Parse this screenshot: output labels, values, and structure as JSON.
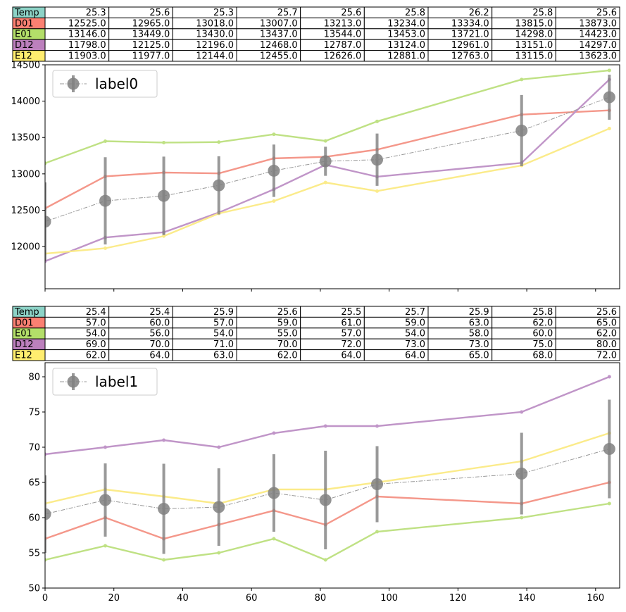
{
  "chart_data": [
    {
      "type": "line",
      "x": [
        0,
        17.5,
        34.5,
        50.5,
        66.5,
        81.5,
        96.5,
        138.5,
        164
      ],
      "xlim": [
        0,
        167
      ],
      "ylim": [
        11420,
        14500
      ],
      "yticks": [
        12000,
        12500,
        13000,
        13500,
        14000,
        14500
      ],
      "show_x_tick_labels": false,
      "table": {
        "row_labels": [
          "Temp",
          "D01",
          "E01",
          "D12",
          "E12"
        ],
        "rows": [
          [
            "25.3",
            "25.6",
            "25.3",
            "25.7",
            "25.6",
            "25.8",
            "26.2",
            "25.8",
            "25.6"
          ],
          [
            "12525.0",
            "12965.0",
            "13018.0",
            "13007.0",
            "13213.0",
            "13234.0",
            "13334.0",
            "13815.0",
            "13873.0"
          ],
          [
            "13146.0",
            "13449.0",
            "13430.0",
            "13437.0",
            "13544.0",
            "13453.0",
            "13721.0",
            "14298.0",
            "14423.0"
          ],
          [
            "11798.0",
            "12125.0",
            "12196.0",
            "12468.0",
            "12787.0",
            "13124.0",
            "12961.0",
            "13151.0",
            "14297.0"
          ],
          [
            "11903.0",
            "11977.0",
            "12144.0",
            "12455.0",
            "12626.0",
            "12881.0",
            "12763.0",
            "13115.0",
            "13623.0"
          ]
        ]
      },
      "series": [
        {
          "name": "D01",
          "color": "#f4978a",
          "values": [
            12525,
            12965,
            13018,
            13007,
            13213,
            13234,
            13334,
            13815,
            13873
          ]
        },
        {
          "name": "E01",
          "color": "#bfe184",
          "values": [
            13146,
            13449,
            13430,
            13437,
            13544,
            13453,
            13721,
            14298,
            14423
          ]
        },
        {
          "name": "D12",
          "color": "#c095c8",
          "values": [
            11798,
            12125,
            12196,
            12468,
            12787,
            13124,
            12961,
            13151,
            14297
          ]
        },
        {
          "name": "E12",
          "color": "#fbeb8a",
          "values": [
            11903,
            11977,
            12144,
            12455,
            12626,
            12881,
            12763,
            13115,
            13623
          ]
        }
      ],
      "mean_series": {
        "name": "label0",
        "color": "#808080",
        "values": [
          12343,
          12629,
          12697,
          12842,
          13043,
          13173,
          13195,
          13595,
          14054
        ],
        "errors": [
          540,
          600,
          540,
          400,
          360,
          200,
          360,
          490,
          310
        ]
      },
      "legend": "upper-left"
    },
    {
      "type": "line",
      "x": [
        0,
        17.5,
        34.5,
        50.5,
        66.5,
        81.5,
        96.5,
        138.5,
        164
      ],
      "xlim": [
        0,
        167
      ],
      "ylim": [
        50,
        82
      ],
      "yticks": [
        50,
        55,
        60,
        65,
        70,
        75,
        80
      ],
      "xticks": [
        0,
        20,
        40,
        60,
        80,
        100,
        120,
        140,
        160
      ],
      "show_x_tick_labels": true,
      "table": {
        "row_labels": [
          "Temp",
          "D01",
          "E01",
          "D12",
          "E12"
        ],
        "rows": [
          [
            "25.4",
            "25.4",
            "25.9",
            "25.6",
            "25.5",
            "25.7",
            "25.9",
            "25.8",
            "25.6"
          ],
          [
            "57.0",
            "60.0",
            "57.0",
            "59.0",
            "61.0",
            "59.0",
            "63.0",
            "62.0",
            "65.0"
          ],
          [
            "54.0",
            "56.0",
            "54.0",
            "55.0",
            "57.0",
            "54.0",
            "58.0",
            "60.0",
            "62.0"
          ],
          [
            "69.0",
            "70.0",
            "71.0",
            "70.0",
            "72.0",
            "73.0",
            "73.0",
            "75.0",
            "80.0"
          ],
          [
            "62.0",
            "64.0",
            "63.0",
            "62.0",
            "64.0",
            "64.0",
            "65.0",
            "68.0",
            "72.0"
          ]
        ]
      },
      "series": [
        {
          "name": "D01",
          "color": "#f4978a",
          "values": [
            57,
            60,
            57,
            59,
            61,
            59,
            63,
            62,
            65
          ]
        },
        {
          "name": "E01",
          "color": "#bfe184",
          "values": [
            54,
            56,
            54,
            55,
            57,
            54,
            58,
            60,
            62
          ]
        },
        {
          "name": "D12",
          "color": "#c095c8",
          "values": [
            69,
            70,
            71,
            70,
            72,
            73,
            73,
            75,
            80
          ]
        },
        {
          "name": "E12",
          "color": "#fbeb8a",
          "values": [
            62,
            64,
            63,
            62,
            64,
            64,
            65,
            68,
            72
          ]
        }
      ],
      "mean_series": {
        "name": "label1",
        "color": "#808080",
        "values": [
          60.5,
          62.5,
          61.25,
          61.5,
          63.5,
          62.5,
          64.75,
          66.25,
          69.75
        ],
        "errors": [
          5.5,
          5.2,
          6.4,
          5.5,
          5.5,
          7.0,
          5.4,
          5.8,
          7.0
        ]
      },
      "legend": "upper-left"
    }
  ],
  "colors": {
    "Temp": "#8dd3c7",
    "D01": "#fb8072",
    "E01": "#b3de69",
    "D12": "#bc80bd",
    "E12": "#ffed6f"
  }
}
